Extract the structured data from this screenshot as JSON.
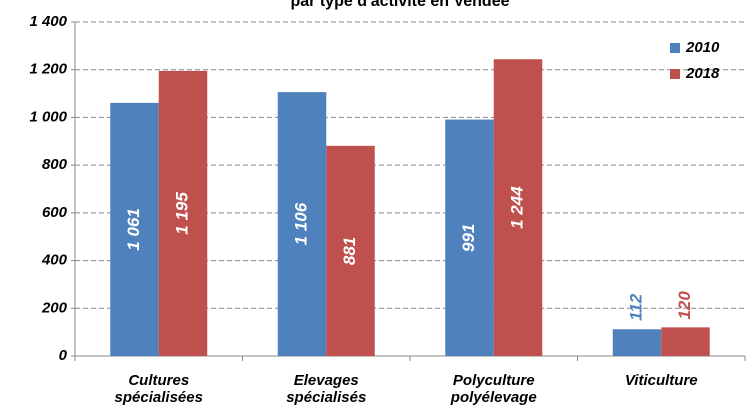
{
  "chart_data": {
    "type": "bar",
    "title": "par type d'activité en Vendée",
    "categories": [
      "Cultures\nspécialisées",
      "Elevages\nspécialisés",
      "Polyculture\npolyélevage",
      "Viticulture"
    ],
    "series": [
      {
        "name": "2010",
        "color": "#4f81bd",
        "values": [
          1061,
          1106,
          991,
          112
        ],
        "value_labels": [
          "1 061",
          "1 106",
          "991",
          "112"
        ]
      },
      {
        "name": "2018",
        "color": "#c0504d",
        "values": [
          1195,
          881,
          1244,
          120
        ],
        "value_labels": [
          "1 195",
          "881",
          "1 244",
          "120"
        ]
      }
    ],
    "ylim": [
      0,
      1400
    ],
    "yticks": [
      0,
      200,
      400,
      600,
      800,
      {
        "value": 1000,
        "label": "1 000"
      },
      {
        "value": 1200,
        "label": "1 200"
      },
      {
        "value": 1400,
        "label": "1 400"
      }
    ],
    "grid": true,
    "legend": "top-right"
  }
}
